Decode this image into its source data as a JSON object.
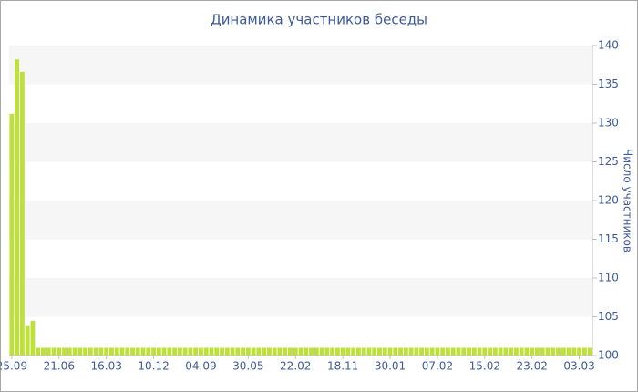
{
  "chart_data": {
    "type": "bar",
    "title": "Динамика участников беседы",
    "y_label": "Число участников",
    "categories": [
      "25.09",
      null,
      null,
      null,
      null,
      null,
      null,
      null,
      null,
      "21.06",
      null,
      null,
      null,
      null,
      null,
      null,
      null,
      null,
      "16.03",
      null,
      null,
      null,
      null,
      null,
      null,
      null,
      null,
      "10.12",
      null,
      null,
      null,
      null,
      null,
      null,
      null,
      null,
      "04.09",
      null,
      null,
      null,
      null,
      null,
      null,
      null,
      null,
      "30.05",
      null,
      null,
      null,
      null,
      null,
      null,
      null,
      null,
      "22.02",
      null,
      null,
      null,
      null,
      null,
      null,
      null,
      null,
      "18.11",
      null,
      null,
      null,
      null,
      null,
      null,
      null,
      null,
      "30.01",
      null,
      null,
      null,
      null,
      null,
      null,
      null,
      null,
      "07.02",
      null,
      null,
      null,
      null,
      null,
      null,
      null,
      null,
      "15.02",
      null,
      null,
      null,
      null,
      null,
      null,
      null,
      null,
      "23.02",
      null,
      null,
      null,
      null,
      null,
      null,
      null,
      null,
      "03.03",
      null,
      null
    ],
    "values": [
      131.2,
      138.2,
      136.6,
      103.8,
      104.5,
      101,
      101,
      101,
      101,
      101,
      101,
      101,
      101,
      101,
      101,
      101,
      101,
      101,
      101,
      101,
      101,
      101,
      101,
      101,
      101,
      101,
      101,
      101,
      101,
      101,
      101,
      101,
      101,
      101,
      101,
      101,
      101,
      101,
      101,
      101,
      101,
      101,
      101,
      101,
      101,
      101,
      101,
      101,
      101,
      101,
      101,
      101,
      101,
      101,
      101,
      101,
      101,
      101,
      101,
      101,
      101,
      101,
      101,
      101,
      101,
      101,
      101,
      101,
      101,
      101,
      101,
      101,
      101,
      101,
      101,
      101,
      101,
      101,
      101,
      101,
      101,
      101,
      101,
      101,
      101,
      101,
      101,
      101,
      101,
      101,
      101,
      101,
      101,
      101,
      101,
      101,
      101,
      101,
      101,
      101,
      101,
      101,
      101,
      101,
      101,
      101,
      101,
      101,
      101,
      101,
      101
    ],
    "color": "#bde03a",
    "ylim": [
      100,
      140
    ],
    "yticks": [
      100,
      105,
      110,
      115,
      120,
      125,
      130,
      135,
      140
    ],
    "y_axis_side": "right",
    "alternate_bands": true
  }
}
